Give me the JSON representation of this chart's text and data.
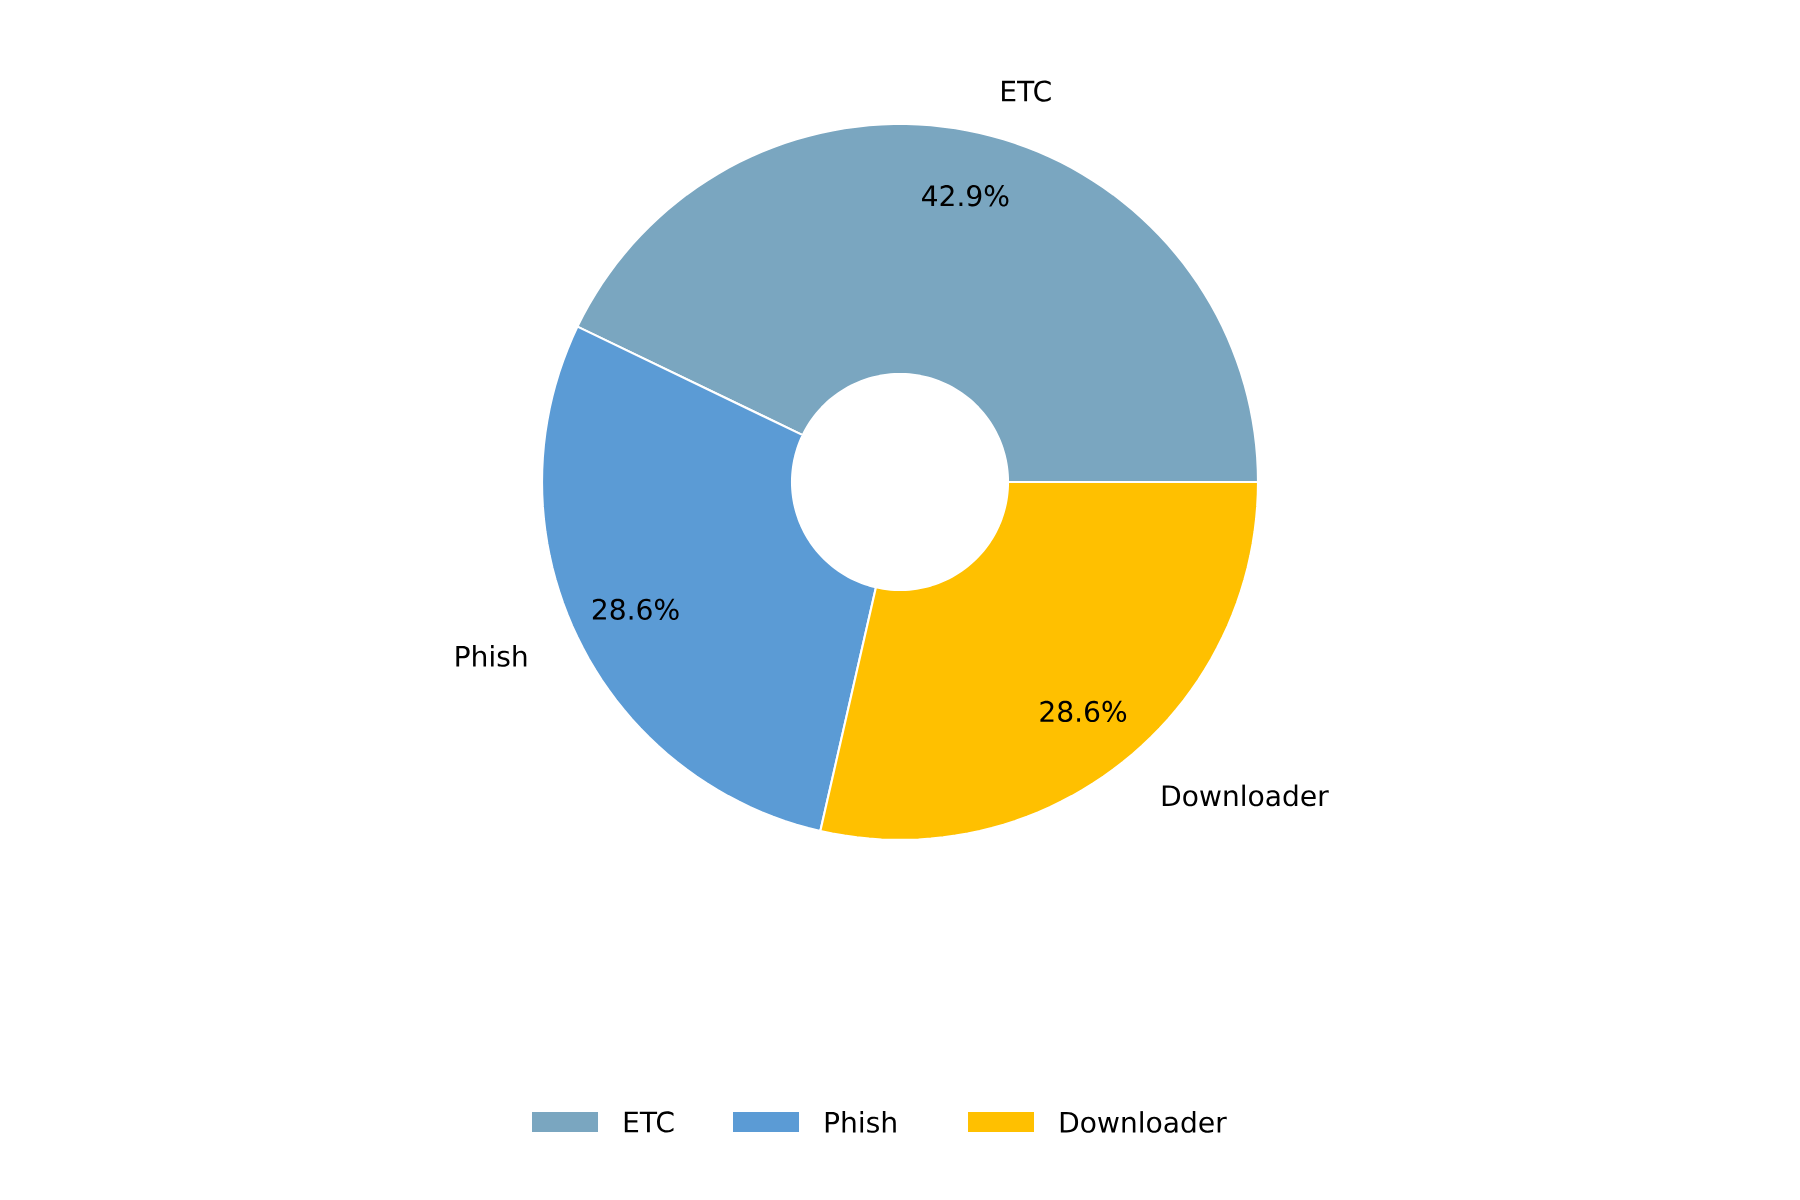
{
  "chart_data": {
    "type": "donut",
    "categories": [
      "ETC",
      "Phish",
      "Downloader"
    ],
    "values": [
      42.9,
      28.6,
      28.6
    ],
    "colors": [
      "#7aa6c0",
      "#5b9bd5",
      "#ffc000"
    ],
    "value_labels": [
      "42.9%",
      "28.6%",
      "28.6%"
    ],
    "legend": "bottom"
  }
}
